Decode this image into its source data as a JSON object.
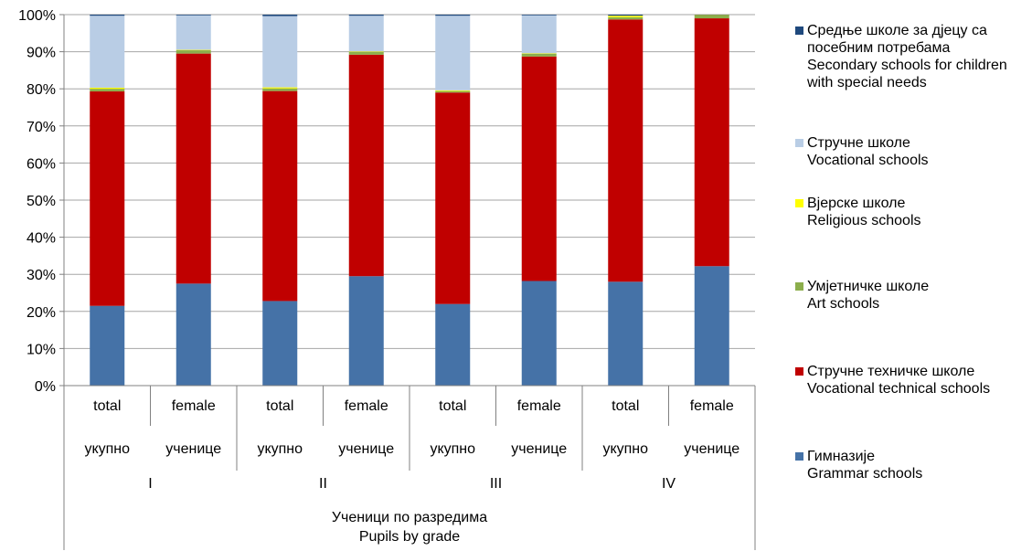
{
  "chart_data": {
    "type": "bar",
    "stacked": true,
    "percent": true,
    "ylim": [
      0,
      100
    ],
    "yticks": [
      "0%",
      "10%",
      "20%",
      "30%",
      "40%",
      "50%",
      "60%",
      "70%",
      "80%",
      "90%",
      "100%"
    ],
    "grid": true,
    "legend_placement": "right",
    "xlabel_lines": [
      "Ученици по разредима",
      "Pupils by grade"
    ],
    "bars": [
      {
        "top": "total",
        "bottom": "укупно"
      },
      {
        "top": "female",
        "bottom": "ученице"
      },
      {
        "top": "total",
        "bottom": "укупно"
      },
      {
        "top": "female",
        "bottom": "ученице"
      },
      {
        "top": "total",
        "bottom": "укупно"
      },
      {
        "top": "female",
        "bottom": "ученице"
      },
      {
        "top": "total",
        "bottom": "укупно"
      },
      {
        "top": "female",
        "bottom": "ученице"
      }
    ],
    "groups": [
      "I",
      "II",
      "III",
      "IV"
    ],
    "series": [
      {
        "name_lines": [
          "Гимназије",
          "Grammar schools"
        ],
        "color": "#4572A7",
        "values": [
          21.5,
          27.5,
          22.8,
          29.5,
          22.0,
          28.2,
          28.0,
          32.2
        ]
      },
      {
        "name_lines": [
          "Стручне техничке школе",
          "Vocational technical schools"
        ],
        "color": "#C00000",
        "values": [
          57.8,
          62.0,
          56.6,
          59.7,
          57.0,
          60.5,
          70.7,
          66.8
        ]
      },
      {
        "name_lines": [
          "Умјетничке школе",
          "Art schools"
        ],
        "color": "#8CAE4C",
        "values": [
          0.7,
          0.9,
          0.7,
          0.8,
          0.4,
          0.8,
          0.6,
          0.8
        ]
      },
      {
        "name_lines": [
          "Вјерске школе",
          "Religious schools"
        ],
        "color": "#FFFF00",
        "values": [
          0.3,
          0.1,
          0.3,
          0.1,
          0.2,
          0.1,
          0.4,
          0.1
        ]
      },
      {
        "name_lines": [
          "Стручне школе",
          "Vocational schools"
        ],
        "color": "#B9CDE5",
        "values": [
          19.4,
          9.3,
          19.2,
          9.6,
          20.1,
          10.2,
          0.0,
          0.0
        ]
      },
      {
        "name_lines": [
          "Средње школе за дјецу са",
          "посебним потребама",
          "Secondary schools for children",
          "with special needs"
        ],
        "color": "#1F497D",
        "values": [
          0.3,
          0.2,
          0.4,
          0.3,
          0.3,
          0.2,
          0.3,
          0.1
        ]
      }
    ]
  }
}
